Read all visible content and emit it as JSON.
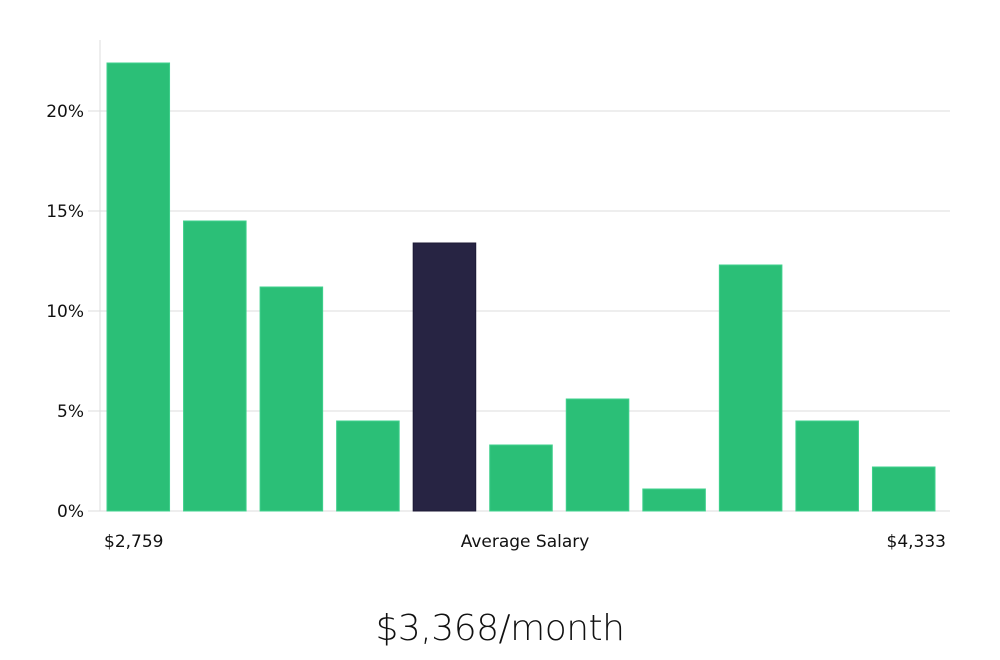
{
  "chart_data": {
    "type": "bar",
    "title": "",
    "xlabel": "Average Salary",
    "ylabel": "",
    "ylim": [
      0,
      23.5
    ],
    "yticks": [
      "0%",
      "5%",
      "10%",
      "15%",
      "20%"
    ],
    "ytick_values": [
      0,
      5,
      10,
      15,
      20
    ],
    "x_min_label": "$2,759",
    "x_max_label": "$4,333",
    "values": [
      22.4,
      14.5,
      11.2,
      4.5,
      13.4,
      3.3,
      5.6,
      1.1,
      12.3,
      4.5,
      2.2
    ],
    "highlight_index": 4,
    "grid": true,
    "colors": {
      "bar": "#2bbf77",
      "highlight": "#272443",
      "grid": "#dddddd"
    }
  },
  "headline": "$3,368/month"
}
